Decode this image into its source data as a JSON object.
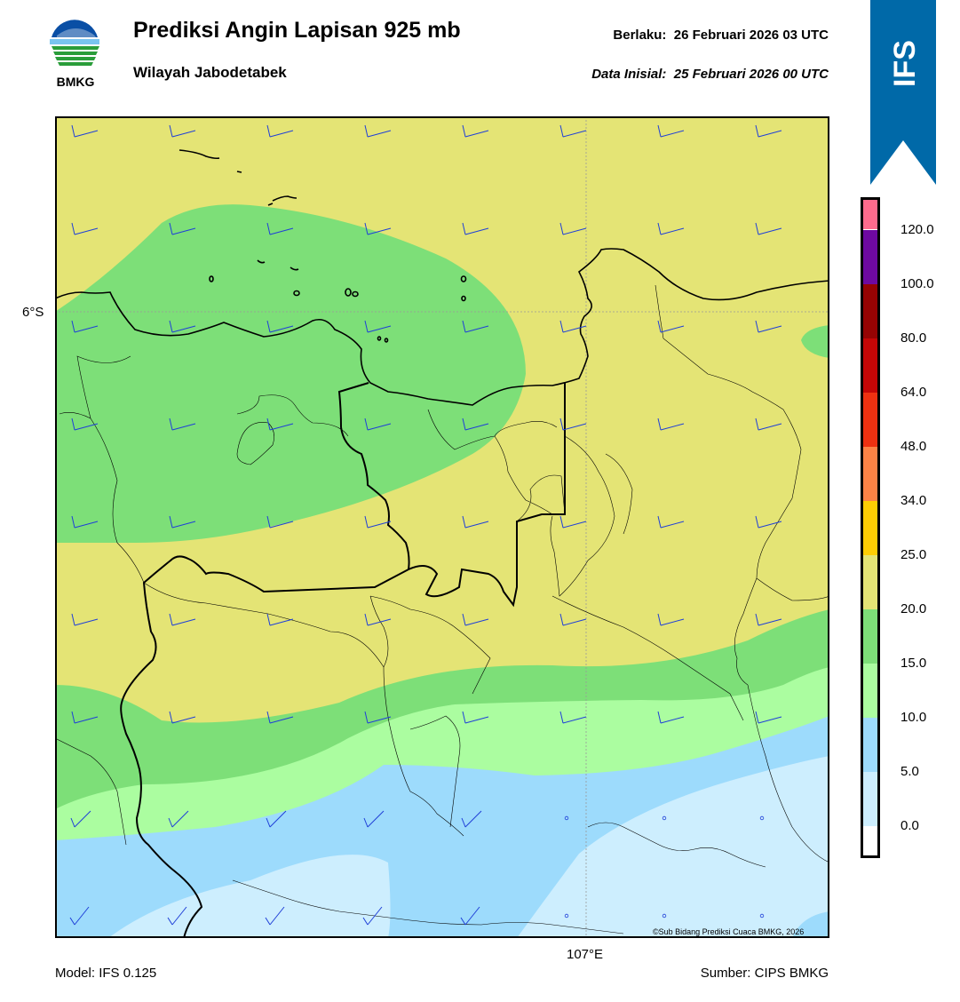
{
  "header": {
    "title": "Prediksi Angin Lapisan 925 mb",
    "subtitle": "Wilayah Jabodetabek",
    "valid_label": "Berlaku:  26 Februari 2026 03 UTC",
    "init_label": "Data Inisial:  25 Februari 2026 00 UTC"
  },
  "logo": {
    "text": "BMKG",
    "icon": "bmkg-logo-icon"
  },
  "banner": {
    "text": "IFS",
    "color": "#0069a8"
  },
  "map": {
    "lat_label": "6°S",
    "lon_label": "107°E",
    "copyright": "©Sub Bidang Prediksi Cuaca BMKG, 2026",
    "wind_barb_color": "#1f3fd8"
  },
  "colorbar": {
    "ticks": [
      "0.0",
      "5.0",
      "10.0",
      "15.0",
      "20.0",
      "25.0",
      "34.0",
      "48.0",
      "64.0",
      "80.0",
      "100.0",
      "120.0"
    ],
    "colors": [
      "#ffffff",
      "#cdeefe",
      "#9ddbfc",
      "#abfda0",
      "#7ddf78",
      "#e4e475",
      "#fecd04",
      "#fd8245",
      "#ee3111",
      "#c40606",
      "#960303",
      "#6e09a1",
      "#fe6b8d"
    ]
  },
  "footer": {
    "model": "Model: IFS 0.125",
    "source": "Sumber: CIPS BMKG"
  }
}
